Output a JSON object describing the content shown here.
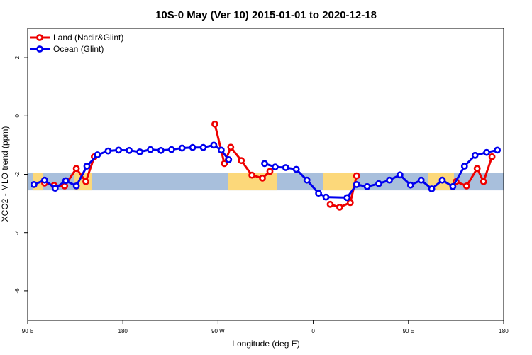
{
  "chart_data": {
    "type": "line",
    "title": "10S-0 May (Ver 10)   2015-01-01 to 2020-12-18",
    "xlabel": "Longitude (deg E)",
    "ylabel": "XCO2 - MLO trend (ppm)",
    "xlim": [
      90,
      540
    ],
    "ylim": [
      -7,
      3
    ],
    "x_ticks": [
      {
        "value": 90,
        "label": "90 E"
      },
      {
        "value": 180,
        "label": "180"
      },
      {
        "value": 270,
        "label": "90 W"
      },
      {
        "value": 360,
        "label": "0"
      },
      {
        "value": 450,
        "label": "90 E"
      },
      {
        "value": 540,
        "label": "180"
      }
    ],
    "y_ticks": [
      {
        "value": 2,
        "label": "2"
      },
      {
        "value": 0,
        "label": "0"
      },
      {
        "value": -2,
        "label": "-2"
      },
      {
        "value": -4,
        "label": "-4"
      },
      {
        "value": -6,
        "label": "-6"
      }
    ],
    "map_band": {
      "lat_range": [
        -10,
        0
      ],
      "y_range": [
        -2.55,
        -1.95
      ],
      "ocean_color": "#a8bfdc",
      "land_color": "#fcd87a"
    },
    "series": [
      {
        "name": "Land (Nadir&Glint)",
        "color": "#ee0000",
        "segments": [
          [
            [
              106,
              -2.3
            ],
            [
              115,
              -2.38
            ],
            [
              125,
              -2.4
            ],
            [
              136,
              -1.8
            ],
            [
              145,
              -2.25
            ],
            [
              153,
              -1.4
            ]
          ],
          [
            [
              267,
              -0.28
            ],
            [
              276,
              -1.63
            ],
            [
              282,
              -1.07
            ],
            [
              292,
              -1.53
            ],
            [
              302,
              -2.03
            ],
            [
              312,
              -2.13
            ],
            [
              319,
              -1.9
            ]
          ],
          [
            [
              376,
              -3.03
            ],
            [
              385,
              -3.13
            ],
            [
              395,
              -2.97
            ],
            [
              401,
              -2.05
            ]
          ],
          [
            [
              495,
              -2.25
            ],
            [
              505,
              -2.4
            ],
            [
              515,
              -1.8
            ],
            [
              521,
              -2.25
            ],
            [
              529,
              -1.4
            ]
          ]
        ]
      },
      {
        "name": "Ocean (Glint)",
        "color": "#0000ee",
        "segments": [
          [
            [
              96,
              -2.35
            ],
            [
              106,
              -2.2
            ],
            [
              116,
              -2.48
            ],
            [
              126,
              -2.22
            ],
            [
              136,
              -2.4
            ],
            [
              146,
              -1.72
            ],
            [
              156,
              -1.33
            ],
            [
              166,
              -1.2
            ],
            [
              176,
              -1.17
            ],
            [
              186,
              -1.18
            ],
            [
              196,
              -1.23
            ],
            [
              206,
              -1.15
            ],
            [
              216,
              -1.18
            ],
            [
              226,
              -1.15
            ],
            [
              236,
              -1.1
            ],
            [
              246,
              -1.08
            ],
            [
              256,
              -1.08
            ],
            [
              266,
              -1.0
            ],
            [
              273,
              -1.17
            ],
            [
              280,
              -1.5
            ]
          ],
          [
            [
              314,
              -1.63
            ],
            [
              324,
              -1.75
            ],
            [
              334,
              -1.77
            ],
            [
              344,
              -1.83
            ],
            [
              354,
              -2.2
            ],
            [
              365,
              -2.65
            ],
            [
              372,
              -2.78
            ],
            [
              392,
              -2.8
            ],
            [
              401,
              -2.35
            ],
            [
              411,
              -2.42
            ],
            [
              422,
              -2.32
            ],
            [
              432,
              -2.2
            ],
            [
              442,
              -2.02
            ],
            [
              452,
              -2.37
            ],
            [
              462,
              -2.2
            ],
            [
              472,
              -2.5
            ],
            [
              482,
              -2.2
            ],
            [
              492,
              -2.42
            ],
            [
              503,
              -1.72
            ],
            [
              513,
              -1.35
            ],
            [
              524,
              -1.25
            ],
            [
              534,
              -1.17
            ]
          ]
        ]
      }
    ],
    "legend_position": "top-left"
  }
}
